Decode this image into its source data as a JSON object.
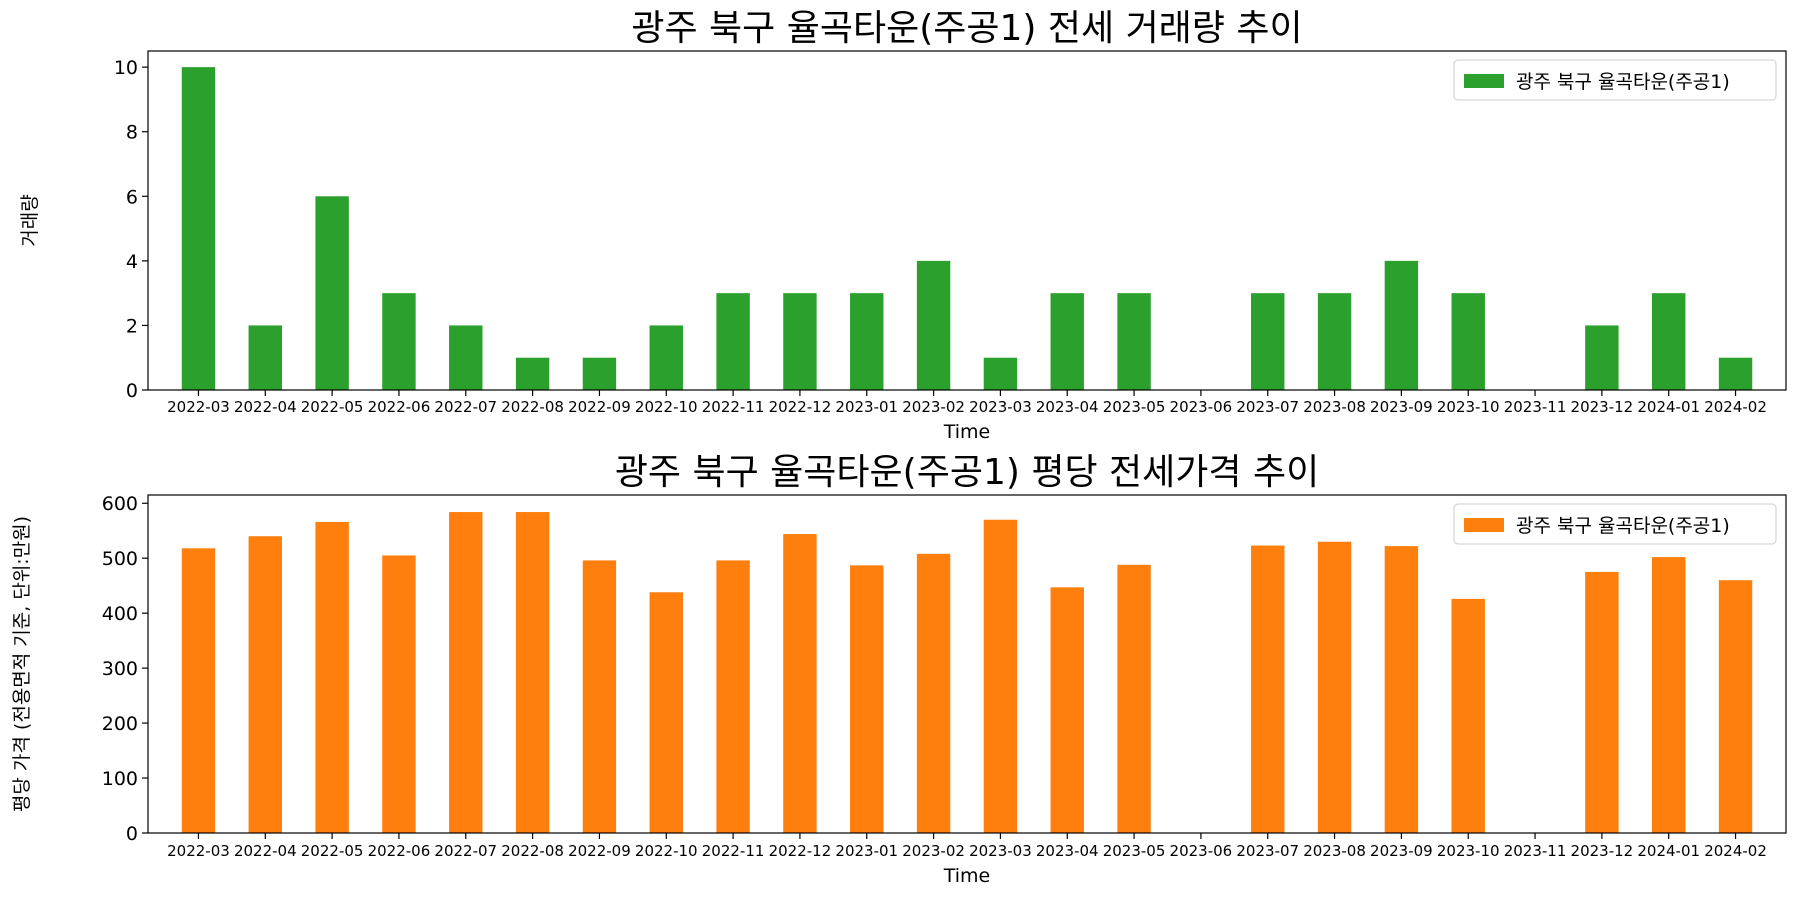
{
  "chart_data": [
    {
      "type": "bar",
      "title": "광주 북구 율곡타운(주공1) 전세 거래량 추이",
      "xlabel": "Time",
      "ylabel": "거래량",
      "ylim": [
        0,
        10.5
      ],
      "yticks": [
        0,
        2,
        4,
        6,
        8,
        10
      ],
      "categories": [
        "2022-03",
        "2022-04",
        "2022-05",
        "2022-06",
        "2022-07",
        "2022-08",
        "2022-09",
        "2022-10",
        "2022-11",
        "2022-12",
        "2023-01",
        "2023-02",
        "2023-03",
        "2023-04",
        "2023-05",
        "2023-06",
        "2023-07",
        "2023-08",
        "2023-09",
        "2023-10",
        "2023-11",
        "2023-12",
        "2024-01",
        "2024-02"
      ],
      "series": [
        {
          "name": "광주 북구 율곡타운(주공1)",
          "color": "#2ca02c",
          "values": [
            10,
            2,
            6,
            3,
            2,
            1,
            1,
            2,
            3,
            3,
            3,
            4,
            1,
            3,
            3,
            null,
            3,
            3,
            4,
            3,
            null,
            2,
            3,
            1
          ]
        }
      ],
      "legend": "top-right",
      "grid": false
    },
    {
      "type": "bar",
      "title": "광주 북구 율곡타운(주공1) 평당 전세가격 추이",
      "xlabel": "Time",
      "ylabel": "평당 가격 (전용면적 기준, 단위:만원)",
      "ylim": [
        0,
        615
      ],
      "yticks": [
        0,
        100,
        200,
        300,
        400,
        500,
        600
      ],
      "categories": [
        "2022-03",
        "2022-04",
        "2022-05",
        "2022-06",
        "2022-07",
        "2022-08",
        "2022-09",
        "2022-10",
        "2022-11",
        "2022-12",
        "2023-01",
        "2023-02",
        "2023-03",
        "2023-04",
        "2023-05",
        "2023-06",
        "2023-07",
        "2023-08",
        "2023-09",
        "2023-10",
        "2023-11",
        "2023-12",
        "2024-01",
        "2024-02"
      ],
      "series": [
        {
          "name": "광주 북구 율곡타운(주공1)",
          "color": "#ff7f0e",
          "values": [
            518,
            540,
            566,
            505,
            584,
            584,
            496,
            438,
            496,
            544,
            487,
            508,
            570,
            447,
            488,
            null,
            523,
            530,
            522,
            426,
            null,
            475,
            502,
            460
          ]
        }
      ],
      "legend": "top-right",
      "grid": false
    }
  ]
}
